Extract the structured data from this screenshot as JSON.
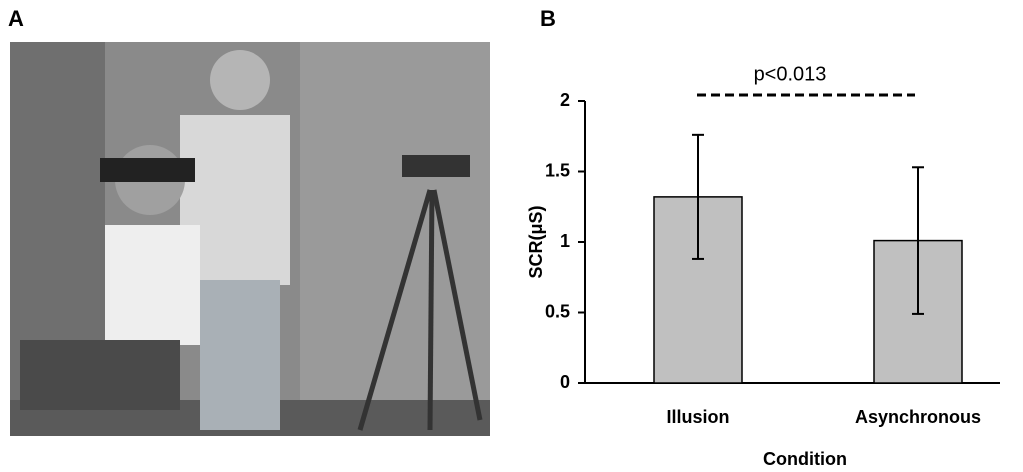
{
  "panel_labels": [
    "A",
    "B"
  ],
  "chart_data": {
    "type": "bar",
    "annotation": "p<0.013",
    "y_label": "SCR(μS)",
    "x_label": "Condition",
    "categories": [
      "Illusion",
      "Asynchronous"
    ],
    "values": [
      1.32,
      1.01
    ],
    "errors": [
      0.44,
      0.52
    ],
    "color": "#c0c0c0",
    "ylim": [
      0,
      2
    ],
    "yticks": [
      0,
      0.5,
      1,
      1.5,
      2
    ],
    "grid": false
  }
}
